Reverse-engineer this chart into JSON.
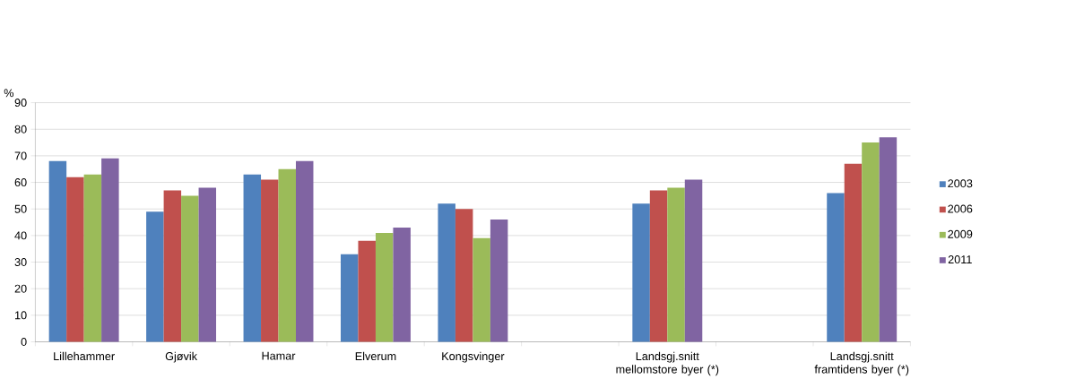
{
  "chart_data": {
    "type": "bar",
    "ylabel": "%",
    "categories": [
      "Lillehammer",
      "Gjøvik",
      "Hamar",
      "Elverum",
      "Kongsvinger",
      null,
      "Landsgj.snitt mellomstore byer (*)",
      null,
      "Landsgj.snitt framtidens byer (*)"
    ],
    "series": [
      {
        "name": "2003",
        "color": "#4f81bd",
        "values": [
          68,
          49,
          63,
          33,
          52,
          null,
          52,
          null,
          56
        ]
      },
      {
        "name": "2006",
        "color": "#c0504d",
        "values": [
          62,
          57,
          61,
          38,
          50,
          null,
          57,
          null,
          67
        ]
      },
      {
        "name": "2009",
        "color": "#9bbb59",
        "values": [
          63,
          55,
          65,
          41,
          39,
          null,
          58,
          null,
          75
        ]
      },
      {
        "name": "2011",
        "color": "#8064a2",
        "values": [
          69,
          58,
          68,
          43,
          46,
          null,
          61,
          null,
          77
        ]
      }
    ],
    "ylim": [
      0,
      90
    ],
    "yticks": [
      0,
      10,
      20,
      30,
      40,
      50,
      60,
      70,
      80,
      90
    ],
    "grid": "y",
    "legend": "right"
  }
}
